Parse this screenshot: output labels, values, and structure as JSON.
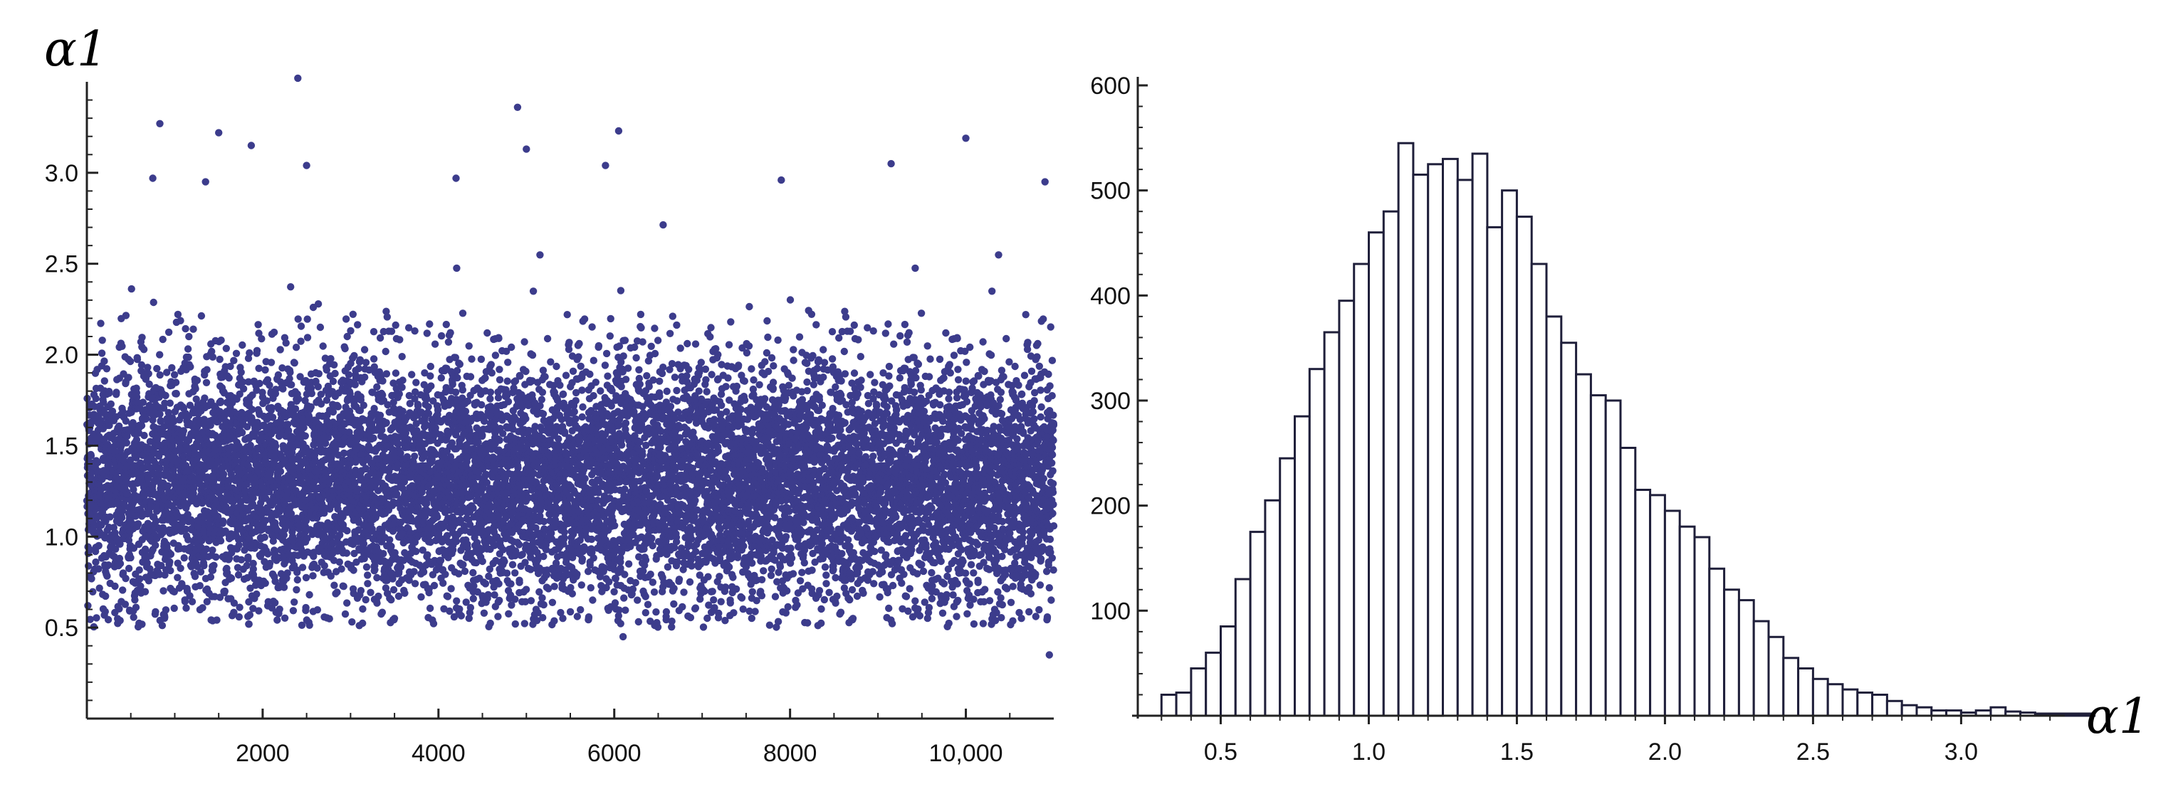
{
  "chart_data": [
    {
      "type": "scatter",
      "ylabel": "α1",
      "xlabel": "",
      "xlim": [
        0,
        11000
      ],
      "ylim": [
        0,
        3.5
      ],
      "x_ticks": [
        2000,
        4000,
        6000,
        8000,
        10000
      ],
      "x_tick_labels": [
        "2000",
        "4000",
        "6000",
        "8000",
        "10,000"
      ],
      "y_ticks": [
        0.5,
        1.0,
        1.5,
        2.0,
        2.5,
        3.0
      ],
      "y_tick_labels": [
        "0.5",
        "1.0",
        "1.5",
        "2.0",
        "2.5",
        "3.0"
      ],
      "n_points": 11000,
      "distribution_summary": {
        "center": 1.3,
        "typical_min": 0.5,
        "typical_max": 2.3
      },
      "outliers": [
        {
          "x": 830,
          "y": 3.27
        },
        {
          "x": 1500,
          "y": 3.22
        },
        {
          "x": 1870,
          "y": 3.15
        },
        {
          "x": 2400,
          "y": 3.52
        },
        {
          "x": 2500,
          "y": 3.04
        },
        {
          "x": 4900,
          "y": 3.36
        },
        {
          "x": 5000,
          "y": 3.13
        },
        {
          "x": 6050,
          "y": 3.23
        },
        {
          "x": 5900,
          "y": 3.04
        },
        {
          "x": 7900,
          "y": 2.96
        },
        {
          "x": 9150,
          "y": 3.05
        },
        {
          "x": 10000,
          "y": 3.19
        },
        {
          "x": 10900,
          "y": 2.95
        },
        {
          "x": 1350,
          "y": 2.95
        },
        {
          "x": 4200,
          "y": 2.97
        },
        {
          "x": 750,
          "y": 2.97
        },
        {
          "x": 10950,
          "y": 0.35
        },
        {
          "x": 6100,
          "y": 0.45
        }
      ],
      "marker_color": "#3c3c8c",
      "grid": false
    },
    {
      "type": "bar",
      "subtype": "histogram",
      "xlabel": "α1",
      "ylabel": "",
      "bin_width": 0.05,
      "bin_start": 0.3,
      "values": [
        20,
        22,
        45,
        60,
        85,
        130,
        175,
        205,
        245,
        285,
        330,
        365,
        395,
        430,
        460,
        480,
        545,
        515,
        525,
        530,
        510,
        535,
        465,
        500,
        475,
        430,
        380,
        355,
        325,
        305,
        300,
        255,
        215,
        210,
        195,
        180,
        170,
        140,
        120,
        110,
        90,
        75,
        55,
        45,
        35,
        30,
        25,
        22,
        20,
        14,
        10,
        8,
        5,
        5,
        3,
        5,
        8,
        4,
        3,
        2,
        2,
        2,
        2
      ],
      "xlim": [
        0.22,
        3.35
      ],
      "ylim": [
        0,
        600
      ],
      "x_ticks": [
        0.5,
        1.0,
        1.5,
        2.0,
        2.5,
        3.0
      ],
      "x_tick_labels": [
        "0.5",
        "1.0",
        "1.5",
        "2.0",
        "2.5",
        "3.0"
      ],
      "y_ticks": [
        100,
        200,
        300,
        400,
        500,
        600
      ],
      "y_tick_labels": [
        "100",
        "200",
        "300",
        "400",
        "500",
        "600"
      ],
      "bar_fill": "#ffffff",
      "bar_stroke": "#1f1f3a",
      "grid": false
    }
  ]
}
